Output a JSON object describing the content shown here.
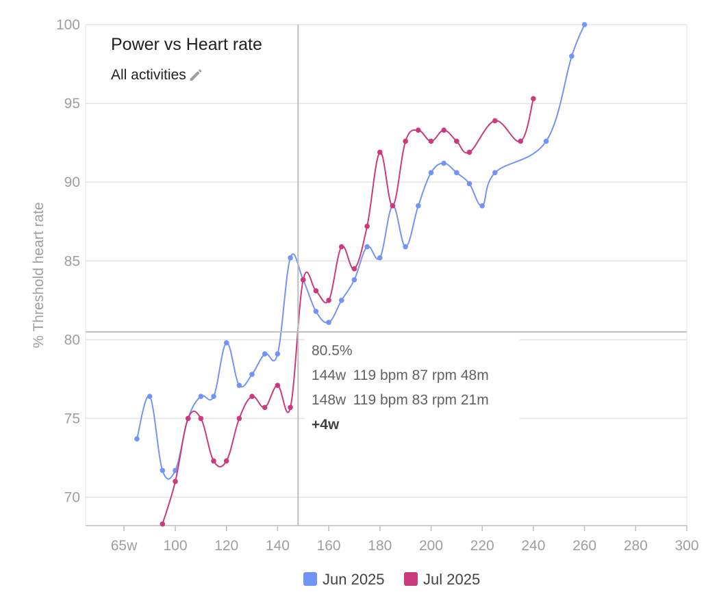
{
  "colors": {
    "jun": "#7294f5",
    "jul": "#cb3a7c",
    "grid": "#e3e3e3",
    "axis": "#bdbdbd",
    "crosshair": "#bdbdbd"
  },
  "chart_data": {
    "type": "line",
    "title": "Power vs Heart rate",
    "subtitle": "All activities",
    "subtitle_icon": "pencil-icon",
    "xlabel": "",
    "ylabel": "% Threshold heart rate",
    "xlim": [
      50,
      300
    ],
    "ylim": [
      68,
      100
    ],
    "x_ticks": [
      65,
      100,
      120,
      140,
      160,
      180,
      200,
      220,
      240,
      260,
      280,
      300
    ],
    "x_tick_labels": [
      "65w",
      "100",
      "120",
      "140",
      "160",
      "180",
      "200",
      "220",
      "240",
      "260",
      "280",
      "300"
    ],
    "y_ticks": [
      70,
      75,
      80,
      85,
      90,
      95,
      100
    ],
    "y_tick_labels": [
      "70",
      "75",
      "80",
      "85",
      "90",
      "95",
      "100"
    ],
    "grid": true,
    "legend_position": "bottom",
    "series": [
      {
        "name": "Jun 2025",
        "color": "#7294f5",
        "points": [
          [
            85,
            73.7
          ],
          [
            90,
            76.4
          ],
          [
            95,
            71.7
          ],
          [
            100,
            71.7
          ],
          [
            105,
            75
          ],
          [
            110,
            76.4
          ],
          [
            115,
            76.4
          ],
          [
            120,
            79.8
          ],
          [
            125,
            77.1
          ],
          [
            130,
            77.8
          ],
          [
            135,
            79.1
          ],
          [
            140,
            79.1
          ],
          [
            145,
            85.2
          ],
          [
            150,
            83.8
          ],
          [
            155,
            81.8
          ],
          [
            160,
            81.1
          ],
          [
            165,
            82.5
          ],
          [
            170,
            83.8
          ],
          [
            175,
            85.9
          ],
          [
            180,
            85.2
          ],
          [
            185,
            88.5
          ],
          [
            190,
            85.9
          ],
          [
            195,
            88.5
          ],
          [
            200,
            90.6
          ],
          [
            205,
            91.2
          ],
          [
            210,
            90.6
          ],
          [
            215,
            89.9
          ],
          [
            220,
            88.5
          ],
          [
            225,
            90.6
          ],
          [
            245,
            92.6
          ],
          [
            255,
            98
          ],
          [
            260,
            100
          ]
        ]
      },
      {
        "name": "Jul 2025",
        "color": "#cb3a7c",
        "points": [
          [
            95,
            68.3
          ],
          [
            100,
            71
          ],
          [
            105,
            75
          ],
          [
            110,
            75
          ],
          [
            115,
            72.3
          ],
          [
            120,
            72.3
          ],
          [
            125,
            75
          ],
          [
            130,
            76.4
          ],
          [
            135,
            75.7
          ],
          [
            140,
            77.1
          ],
          [
            145,
            75.7
          ],
          [
            150,
            83.8
          ],
          [
            155,
            83.1
          ],
          [
            160,
            82.5
          ],
          [
            165,
            85.9
          ],
          [
            170,
            84.5
          ],
          [
            175,
            87.2
          ],
          [
            180,
            91.9
          ],
          [
            185,
            88.5
          ],
          [
            190,
            92.6
          ],
          [
            195,
            93.3
          ],
          [
            200,
            92.6
          ],
          [
            205,
            93.3
          ],
          [
            210,
            92.6
          ],
          [
            215,
            91.9
          ],
          [
            225,
            93.9
          ],
          [
            235,
            92.6
          ],
          [
            240,
            95.3
          ]
        ]
      }
    ],
    "crosshair": {
      "x": 148,
      "y": 80.5
    },
    "tooltip": {
      "value": "80.5%",
      "rows": [
        {
          "power": "144w",
          "details": "119 bpm 87 rpm 48m"
        },
        {
          "power": "148w",
          "details": "119 bpm 83 rpm 21m"
        }
      ],
      "diff": "+4w"
    }
  }
}
